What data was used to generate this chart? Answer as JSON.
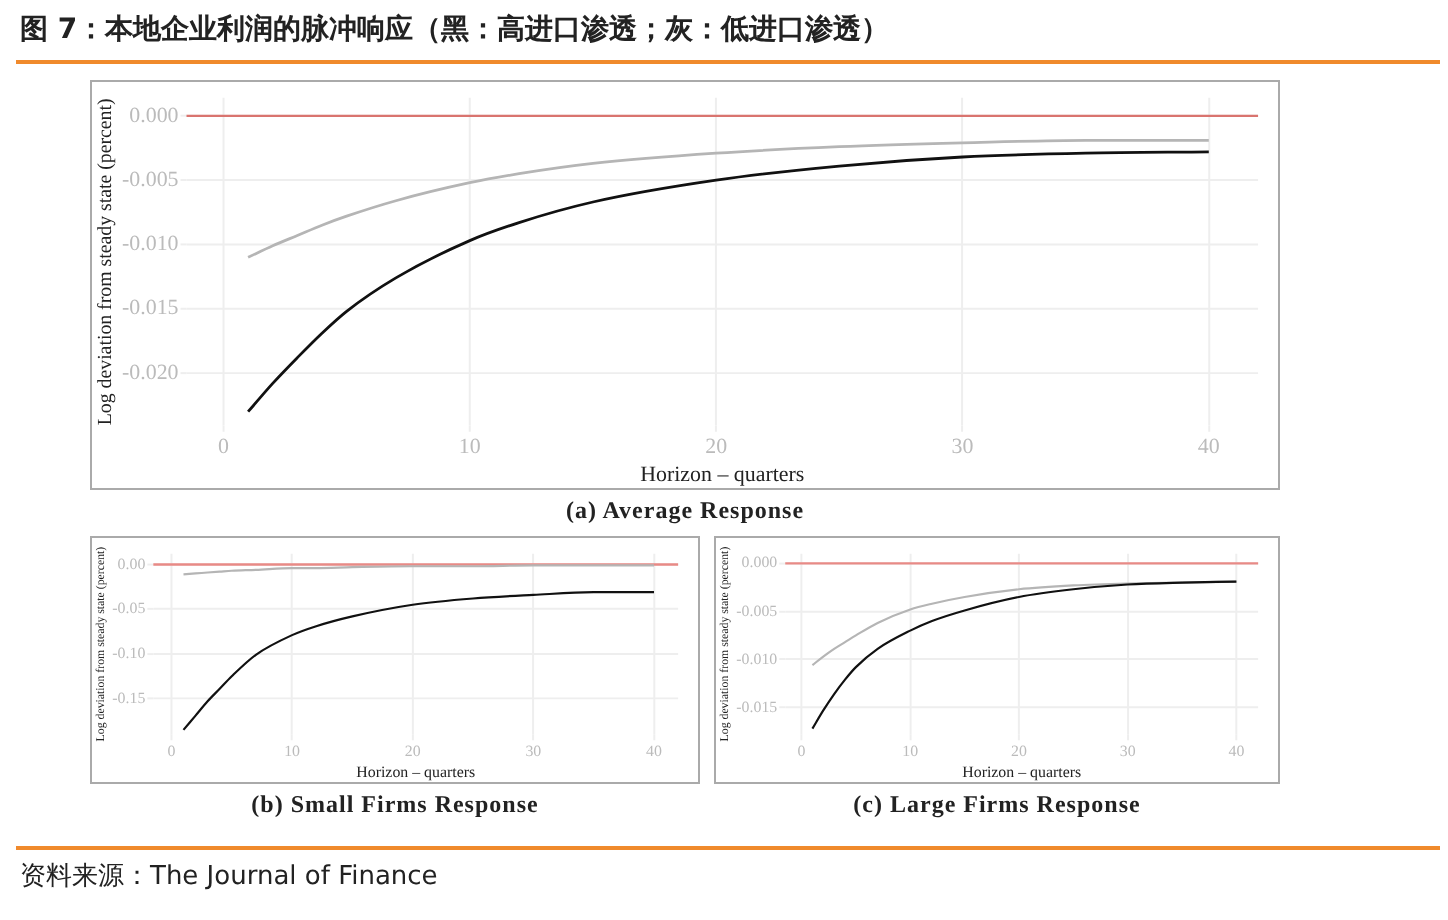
{
  "chart_data": [
    {
      "type": "line",
      "title": "图 7：本地企业利润的脉冲响应（黑：高进口渗透；灰：低进口渗透）",
      "xlabel": "Horizon – quarters",
      "ylabel": "Log deviation from steady state (percent)",
      "annotations": [
        "(a) Average Response"
      ],
      "x": [
        1,
        2,
        3,
        4,
        5,
        7,
        10,
        12,
        15,
        20,
        25,
        30,
        35,
        40
      ],
      "series": [
        {
          "color": "#111111",
          "values": [
            -0.023,
            -0.0208,
            -0.0188,
            -0.0169,
            -0.0152,
            -0.0126,
            -0.0097,
            -0.0083,
            -0.0067,
            -0.005,
            -0.0039,
            -0.0032,
            -0.0029,
            -0.0028
          ]
        },
        {
          "color": "#b5b5b5",
          "values": [
            -0.011,
            -0.0101,
            -0.0093,
            -0.0085,
            -0.0078,
            -0.0066,
            -0.0052,
            -0.0045,
            -0.0037,
            -0.0029,
            -0.0024,
            -0.0021,
            -0.0019,
            -0.0019
          ]
        }
      ],
      "xlim": [
        -1.5,
        42
      ],
      "xticks": [
        0,
        10,
        20,
        30,
        40
      ],
      "ylim": [
        -0.0241,
        0.0014
      ],
      "yticks": [
        {
          "value": 0,
          "label": "0.000"
        },
        {
          "value": -0.005,
          "label": "-0.005"
        },
        {
          "value": -0.01,
          "label": "-0.010"
        },
        {
          "value": -0.015,
          "label": "-0.015"
        },
        {
          "value": -0.02,
          "label": "-0.020"
        }
      ],
      "ref_lines": [
        {
          "axis": "y",
          "value": 0,
          "color": "#d9746f"
        }
      ],
      "grid": true,
      "legend": false,
      "marker": "none",
      "line_style": "solid"
    },
    {
      "type": "line",
      "xlabel": "Horizon – quarters",
      "ylabel": "Log deviation from steady state (percent)",
      "annotations": [
        "(b) Small Firms Response"
      ],
      "x": [
        1,
        2,
        3,
        4,
        5,
        7,
        10,
        12,
        15,
        20,
        25,
        30,
        35,
        40
      ],
      "series": [
        {
          "color": "#111111",
          "values": [
            -0.185,
            -0.169,
            -0.153,
            -0.139,
            -0.125,
            -0.101,
            -0.079,
            -0.069,
            -0.058,
            -0.045,
            -0.038,
            -0.034,
            -0.031,
            -0.031
          ]
        },
        {
          "color": "#b5b5b5",
          "values": [
            -0.011,
            -0.01,
            -0.009,
            -0.008,
            -0.007,
            -0.006,
            -0.004,
            -0.004,
            -0.003,
            -0.002,
            -0.002,
            -0.001,
            -0.001,
            -0.001
          ]
        }
      ],
      "xlim": [
        -1.5,
        42
      ],
      "xticks": [
        0,
        10,
        20,
        30,
        40
      ],
      "ylim": [
        -0.19,
        0.012
      ],
      "yticks": [
        {
          "value": 0,
          "label": "0.00"
        },
        {
          "value": -0.05,
          "label": "-0.05"
        },
        {
          "value": -0.1,
          "label": "-0.10"
        },
        {
          "value": -0.15,
          "label": "-0.15"
        }
      ],
      "ref_lines": [
        {
          "axis": "y",
          "value": 0,
          "color": "#e88a86"
        }
      ],
      "grid": true,
      "legend": false,
      "marker": "none",
      "line_style": "solid"
    },
    {
      "type": "line",
      "xlabel": "Horizon – quarters",
      "ylabel": "Log deviation from steady state (percent)",
      "annotations": [
        "(c) Large Firms Response",
        "资料来源：The Journal of Finance"
      ],
      "x": [
        1,
        2,
        3,
        4,
        5,
        7,
        10,
        12,
        15,
        20,
        25,
        30,
        35,
        40
      ],
      "series": [
        {
          "color": "#111111",
          "values": [
            -0.0172,
            -0.0153,
            -0.0136,
            -0.0121,
            -0.0108,
            -0.0089,
            -0.007,
            -0.006,
            -0.0049,
            -0.0035,
            -0.0027,
            -0.0022,
            -0.002,
            -0.0019
          ]
        },
        {
          "color": "#b5b5b5",
          "values": [
            -0.0106,
            -0.0097,
            -0.0089,
            -0.0082,
            -0.0075,
            -0.0062,
            -0.0048,
            -0.0042,
            -0.0035,
            -0.0027,
            -0.0023,
            -0.0021,
            -0.002,
            -0.0019
          ]
        }
      ],
      "xlim": [
        -1.5,
        42
      ],
      "xticks": [
        0,
        10,
        20,
        30,
        40
      ],
      "ylim": [
        -0.0178,
        0.001
      ],
      "yticks": [
        {
          "value": 0,
          "label": "0.000"
        },
        {
          "value": -0.005,
          "label": "-0.005"
        },
        {
          "value": -0.01,
          "label": "-0.010"
        },
        {
          "value": -0.015,
          "label": "-0.015"
        }
      ],
      "ref_lines": [
        {
          "axis": "y",
          "value": 0,
          "color": "#e88a86"
        }
      ],
      "grid": true,
      "legend": false,
      "marker": "none",
      "line_style": "solid"
    }
  ]
}
